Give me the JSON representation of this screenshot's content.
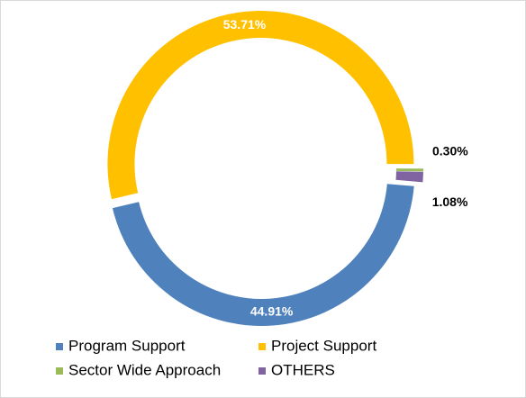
{
  "chart_data": {
    "type": "donut",
    "categories": [
      "Program Support",
      "Project Support",
      "Sector Wide Approach",
      "OTHERS"
    ],
    "values": [
      44.91,
      53.71,
      0.3,
      1.08
    ],
    "value_labels": [
      "44.91%",
      "53.71%",
      "0.30%",
      "1.08%"
    ],
    "colors": [
      "#4f81bd",
      "#ffc000",
      "#9bbb59",
      "#8064a2"
    ],
    "legend": "bottom"
  }
}
